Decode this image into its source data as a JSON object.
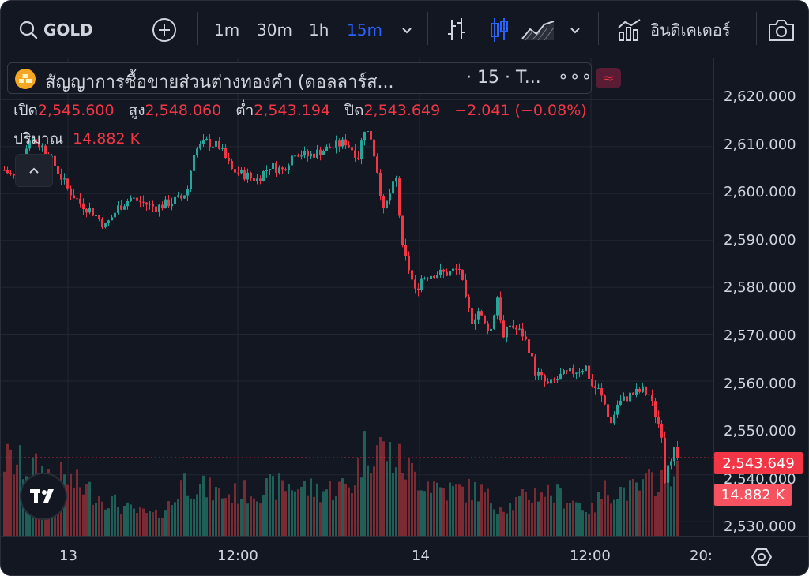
{
  "toolbar": {
    "symbol": "GOLD",
    "intervals": [
      "1m",
      "30m",
      "1h",
      "15m"
    ],
    "active_interval": "15m",
    "indicators_label": "อินดิเคเตอร์"
  },
  "legend": {
    "title": "สัญญาการซื้อขายส่วนต่างทองคำ (ดอลลาร์ส...",
    "suffix": "· 15 · T...",
    "more": "∘∘∘",
    "open_label": "เปิด",
    "open": "2,545.600",
    "high_label": "สูง",
    "high": "2,548.060",
    "low_label": "ต่ำ",
    "low": "2,543.194",
    "close_label": "ปิด",
    "close": "2,543.649",
    "change": "−2.041 (−0.08%)",
    "volume_label": "ปริมาณ",
    "volume": "14.882 K"
  },
  "price_axis": {
    "labels": [
      "2,620.000",
      "2,610.000",
      "2,600.000",
      "2,590.000",
      "2,580.000",
      "2,570.000",
      "2,560.000",
      "2,550.000",
      "2,540.000",
      "2,530.000"
    ],
    "last_price": "2,543.649",
    "last_volume": "14.882 K"
  },
  "time_axis": {
    "labels": [
      "13",
      "12:00",
      "14",
      "12:00",
      "20:"
    ]
  },
  "colors": {
    "up": "#26a69a",
    "down": "#f23645",
    "active": "#2962ff",
    "background": "#131722"
  },
  "chart_data": {
    "type": "candlestick",
    "symbol": "GOLD",
    "interval": "15m",
    "y_range": [
      2527,
      2629
    ],
    "close_path": [
      [
        0,
        2605
      ],
      [
        4,
        2603
      ],
      [
        8,
        2612
      ],
      [
        12,
        2610
      ],
      [
        16,
        2606
      ],
      [
        20,
        2601
      ],
      [
        24,
        2598
      ],
      [
        28,
        2596
      ],
      [
        32,
        2593
      ],
      [
        36,
        2597
      ],
      [
        40,
        2599
      ],
      [
        44,
        2598
      ],
      [
        48,
        2597
      ],
      [
        52,
        2598
      ],
      [
        56,
        2599
      ],
      [
        58,
        2601
      ],
      [
        60,
        2609
      ],
      [
        64,
        2611
      ],
      [
        68,
        2610
      ],
      [
        72,
        2605
      ],
      [
        76,
        2604
      ],
      [
        80,
        2603
      ],
      [
        84,
        2606
      ],
      [
        88,
        2605
      ],
      [
        92,
        2609
      ],
      [
        96,
        2608
      ],
      [
        100,
        2609
      ],
      [
        104,
        2610
      ],
      [
        108,
        2611
      ],
      [
        112,
        2608
      ],
      [
        114,
        2614
      ],
      [
        116,
        2612
      ],
      [
        118,
        2605
      ],
      [
        120,
        2596
      ],
      [
        122,
        2600
      ],
      [
        124,
        2603
      ],
      [
        126,
        2588
      ],
      [
        128,
        2584
      ],
      [
        130,
        2579
      ],
      [
        132,
        2582
      ],
      [
        136,
        2583
      ],
      [
        140,
        2583
      ],
      [
        144,
        2584
      ],
      [
        146,
        2577
      ],
      [
        148,
        2573
      ],
      [
        150,
        2575
      ],
      [
        152,
        2572
      ],
      [
        154,
        2571
      ],
      [
        156,
        2578
      ],
      [
        158,
        2569
      ],
      [
        160,
        2572
      ],
      [
        164,
        2570
      ],
      [
        166,
        2567
      ],
      [
        168,
        2562
      ],
      [
        172,
        2559
      ],
      [
        176,
        2561
      ],
      [
        180,
        2562
      ],
      [
        184,
        2563
      ],
      [
        186,
        2559
      ],
      [
        188,
        2558
      ],
      [
        190,
        2555
      ],
      [
        192,
        2551
      ],
      [
        194,
        2555
      ],
      [
        198,
        2557
      ],
      [
        202,
        2558
      ],
      [
        204,
        2557
      ],
      [
        206,
        2553
      ],
      [
        208,
        2549
      ],
      [
        209,
        2539
      ],
      [
        210,
        2543
      ],
      [
        212,
        2545
      ],
      [
        213,
        2543.649
      ]
    ],
    "volume_profile": [
      [
        0,
        15
      ],
      [
        10,
        13
      ],
      [
        20,
        11
      ],
      [
        30,
        8
      ],
      [
        40,
        5
      ],
      [
        48,
        4
      ],
      [
        54,
        7
      ],
      [
        56,
        11
      ],
      [
        60,
        10
      ],
      [
        70,
        8
      ],
      [
        80,
        9
      ],
      [
        90,
        10
      ],
      [
        100,
        9
      ],
      [
        110,
        10
      ],
      [
        114,
        17
      ],
      [
        118,
        18
      ],
      [
        124,
        15
      ],
      [
        130,
        12
      ],
      [
        140,
        9
      ],
      [
        150,
        9
      ],
      [
        156,
        6
      ],
      [
        160,
        6
      ],
      [
        170,
        9
      ],
      [
        180,
        7
      ],
      [
        186,
        5
      ],
      [
        190,
        9
      ],
      [
        200,
        9
      ],
      [
        208,
        12
      ],
      [
        213,
        14.882
      ]
    ],
    "volume_max": 25
  }
}
